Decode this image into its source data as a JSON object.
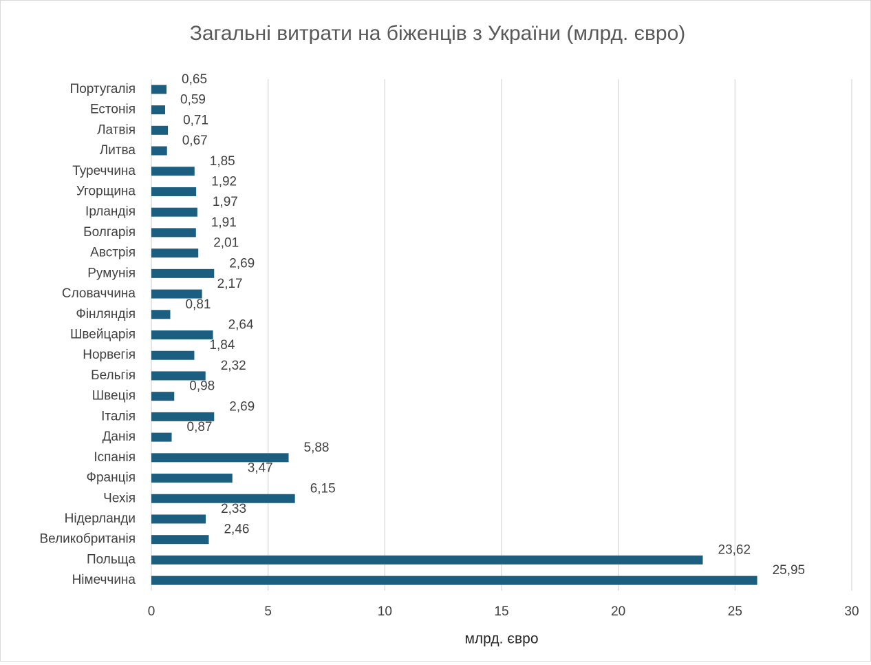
{
  "chart_data": {
    "type": "hbar",
    "title": "Загальні витрати на біженців з України   (млрд. євро)",
    "xlabel": "млрд. євро",
    "categories": [
      "Португалія",
      "Естонія",
      "Латвія",
      "Литва",
      "Туреччина",
      "Угорщина",
      "Ірландія",
      "Болгарія",
      "Австрія",
      "Румунія",
      "Словаччина",
      "Фінляндія",
      "Швейцарія",
      "Норвегія",
      "Бельгія",
      "Швеція",
      "Італія",
      "Данія",
      "Іспанія",
      "Франція",
      "Чехія",
      "Нідерланди",
      "Великобританія",
      "Польща",
      "Німеччина"
    ],
    "values": [
      0.65,
      0.59,
      0.71,
      0.67,
      1.85,
      1.92,
      1.97,
      1.91,
      2.01,
      2.69,
      2.17,
      0.81,
      2.64,
      1.84,
      2.32,
      0.98,
      2.69,
      0.87,
      5.88,
      3.47,
      6.15,
      2.33,
      2.46,
      23.62,
      25.95
    ],
    "value_labels": [
      "0,65",
      "0,59",
      "0,71",
      "0,67",
      "1,85",
      "1,92",
      "1,97",
      "1,91",
      "2,01",
      "2,69",
      "2,17",
      "0,81",
      "2,64",
      "1,84",
      "2,32",
      "0,98",
      "2,69",
      "0,87",
      "5,88",
      "3,47",
      "6,15",
      "2,33",
      "2,46",
      "23,62",
      "25,95"
    ],
    "color": "#1b5e80",
    "xlim": [
      0,
      30
    ],
    "xticks": [
      0,
      5,
      10,
      15,
      20,
      25,
      30
    ],
    "grid": true
  }
}
